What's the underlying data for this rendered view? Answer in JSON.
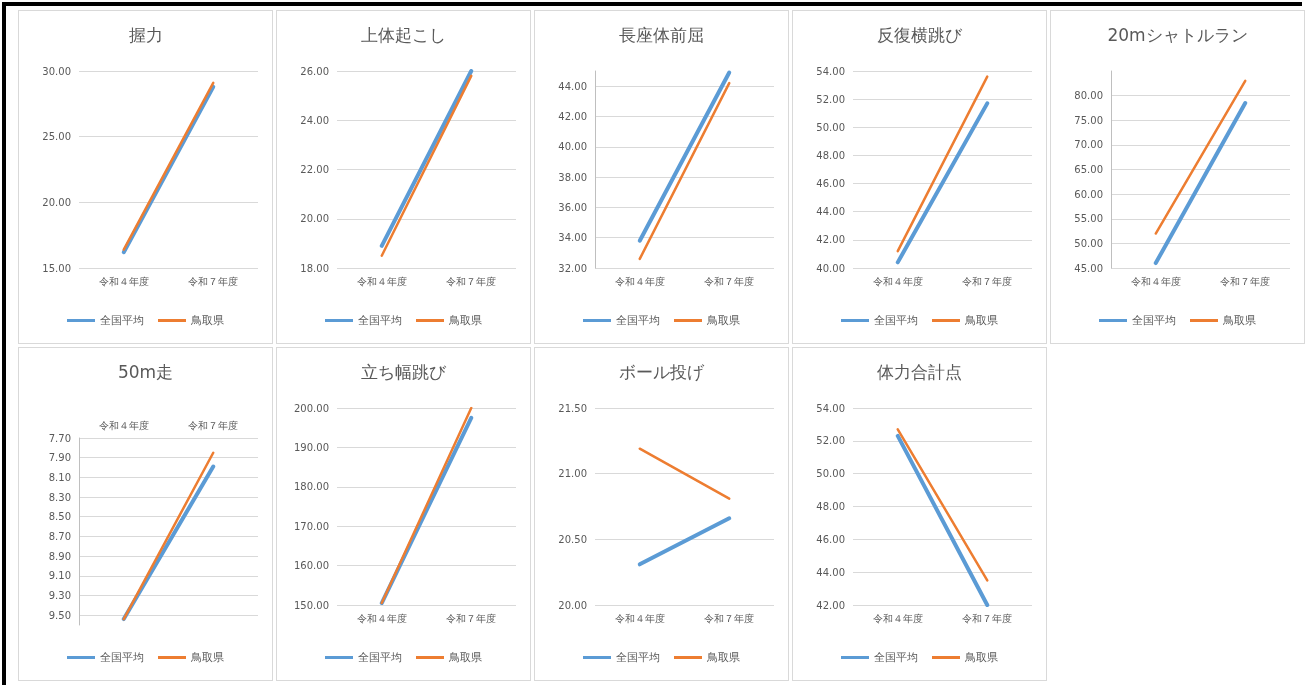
{
  "chart_data": [
    {
      "type": "line",
      "title": "握力",
      "categories": [
        "令和４年度",
        "令和７年度"
      ],
      "series": [
        {
          "name": "全国平均",
          "color": "#5b9bd5",
          "values": [
            16.2,
            28.8
          ]
        },
        {
          "name": "鳥取県",
          "color": "#ed7d31",
          "values": [
            16.4,
            29.1
          ]
        }
      ],
      "ylim": [
        15,
        30
      ],
      "yticks": [
        {
          "value": 15,
          "label": "15.00"
        },
        {
          "value": 20,
          "label": "20.00"
        },
        {
          "value": 25,
          "label": "25.00"
        },
        {
          "value": 30,
          "label": "30.00"
        }
      ],
      "grid": "y",
      "legend": "bottom",
      "marker": "none"
    },
    {
      "type": "line",
      "title": "上体起こし",
      "categories": [
        "令和４年度",
        "令和７年度"
      ],
      "series": [
        {
          "name": "全国平均",
          "color": "#5b9bd5",
          "values": [
            18.9,
            26.0
          ]
        },
        {
          "name": "鳥取県",
          "color": "#ed7d31",
          "values": [
            18.5,
            25.8
          ]
        }
      ],
      "ylim": [
        18,
        26
      ],
      "yticks": [
        {
          "value": 18,
          "label": "18.00"
        },
        {
          "value": 20,
          "label": "20.00"
        },
        {
          "value": 22,
          "label": "22.00"
        },
        {
          "value": 24,
          "label": "24.00"
        },
        {
          "value": 26,
          "label": "26.00"
        }
      ],
      "grid": "y",
      "legend": "bottom",
      "marker": "none"
    },
    {
      "type": "line",
      "title": "長座体前屈",
      "categories": [
        "令和４年度",
        "令和７年度"
      ],
      "series": [
        {
          "name": "全国平均",
          "color": "#5b9bd5",
          "values": [
            33.8,
            44.9
          ]
        },
        {
          "name": "鳥取県",
          "color": "#ed7d31",
          "values": [
            32.6,
            44.2
          ]
        }
      ],
      "ylim": [
        32,
        45
      ],
      "yticks": [
        {
          "value": 32,
          "label": "32.00"
        },
        {
          "value": 34,
          "label": "34.00"
        },
        {
          "value": 36,
          "label": "36.00"
        },
        {
          "value": 38,
          "label": "38.00"
        },
        {
          "value": 40,
          "label": "40.00"
        },
        {
          "value": 42,
          "label": "42.00"
        },
        {
          "value": 44,
          "label": "44.00"
        }
      ],
      "grid": "y",
      "legend": "bottom",
      "marker": "none"
    },
    {
      "type": "line",
      "title": "反復横跳び",
      "categories": [
        "令和４年度",
        "令和７年度"
      ],
      "series": [
        {
          "name": "全国平均",
          "color": "#5b9bd5",
          "values": [
            40.4,
            51.7
          ]
        },
        {
          "name": "鳥取県",
          "color": "#ed7d31",
          "values": [
            41.2,
            53.6
          ]
        }
      ],
      "ylim": [
        40,
        54
      ],
      "yticks": [
        {
          "value": 40,
          "label": "40.00"
        },
        {
          "value": 42,
          "label": "42.00"
        },
        {
          "value": 44,
          "label": "44.00"
        },
        {
          "value": 46,
          "label": "46.00"
        },
        {
          "value": 48,
          "label": "48.00"
        },
        {
          "value": 50,
          "label": "50.00"
        },
        {
          "value": 52,
          "label": "52.00"
        },
        {
          "value": 54,
          "label": "54.00"
        }
      ],
      "grid": "y",
      "legend": "bottom",
      "marker": "none"
    },
    {
      "type": "line",
      "title": "20mシャトルラン",
      "categories": [
        "令和４年度",
        "令和７年度"
      ],
      "series": [
        {
          "name": "全国平均",
          "color": "#5b9bd5",
          "values": [
            46.0,
            78.5
          ]
        },
        {
          "name": "鳥取県",
          "color": "#ed7d31",
          "values": [
            52.0,
            83.0
          ]
        }
      ],
      "ylim": [
        45,
        85
      ],
      "yticks": [
        {
          "value": 45,
          "label": "45.00"
        },
        {
          "value": 50,
          "label": "50.00"
        },
        {
          "value": 55,
          "label": "55.00"
        },
        {
          "value": 60,
          "label": "60.00"
        },
        {
          "value": 65,
          "label": "65.00"
        },
        {
          "value": 70,
          "label": "70.00"
        },
        {
          "value": 75,
          "label": "75.00"
        },
        {
          "value": 80,
          "label": "80.00"
        }
      ],
      "grid": "y",
      "legend": "bottom",
      "marker": "none"
    },
    {
      "type": "line",
      "title": "50m走",
      "categories": [
        "令和４年度",
        "令和７年度"
      ],
      "series": [
        {
          "name": "全国平均",
          "color": "#5b9bd5",
          "values": [
            9.54,
            7.99
          ]
        },
        {
          "name": "鳥取県",
          "color": "#ed7d31",
          "values": [
            9.54,
            7.85
          ]
        }
      ],
      "ylim": [
        9.6,
        7.7
      ],
      "yticks": [
        {
          "value": 7.7,
          "label": "7.70"
        },
        {
          "value": 7.9,
          "label": "7.90"
        },
        {
          "value": 8.1,
          "label": "8.10"
        },
        {
          "value": 8.3,
          "label": "8.30"
        },
        {
          "value": 8.5,
          "label": "8.50"
        },
        {
          "value": 8.7,
          "label": "8.70"
        },
        {
          "value": 8.9,
          "label": "8.90"
        },
        {
          "value": 9.1,
          "label": "9.10"
        },
        {
          "value": 9.3,
          "label": "9.30"
        },
        {
          "value": 9.5,
          "label": "9.50"
        }
      ],
      "grid": "y",
      "legend": "bottom",
      "marker": "none"
    },
    {
      "type": "line",
      "title": "立ち幅跳び",
      "categories": [
        "令和４年度",
        "令和７年度"
      ],
      "series": [
        {
          "name": "全国平均",
          "color": "#5b9bd5",
          "values": [
            150.5,
            197.5
          ]
        },
        {
          "name": "鳥取県",
          "color": "#ed7d31",
          "values": [
            150.5,
            200.0
          ]
        }
      ],
      "ylim": [
        150,
        200
      ],
      "yticks": [
        {
          "value": 150,
          "label": "150.00"
        },
        {
          "value": 160,
          "label": "160.00"
        },
        {
          "value": 170,
          "label": "170.00"
        },
        {
          "value": 180,
          "label": "180.00"
        },
        {
          "value": 190,
          "label": "190.00"
        },
        {
          "value": 200,
          "label": "200.00"
        }
      ],
      "grid": "y",
      "legend": "bottom",
      "marker": "none"
    },
    {
      "type": "line",
      "title": "ボール投げ",
      "categories": [
        "令和４年度",
        "令和７年度"
      ],
      "series": [
        {
          "name": "全国平均",
          "color": "#5b9bd5",
          "values": [
            20.31,
            20.66
          ]
        },
        {
          "name": "鳥取県",
          "color": "#ed7d31",
          "values": [
            21.19,
            20.81
          ]
        }
      ],
      "ylim": [
        20,
        21.5
      ],
      "yticks": [
        {
          "value": 20,
          "label": "20.00"
        },
        {
          "value": 20.5,
          "label": "20.50"
        },
        {
          "value": 21,
          "label": "21.00"
        },
        {
          "value": 21.5,
          "label": "21.50"
        }
      ],
      "grid": "y",
      "legend": "bottom",
      "marker": "none"
    },
    {
      "type": "line",
      "title": "体力合計点",
      "categories": [
        "令和４年度",
        "令和７年度"
      ],
      "series": [
        {
          "name": "全国平均",
          "color": "#5b9bd5",
          "values": [
            52.3,
            42.0
          ]
        },
        {
          "name": "鳥取県",
          "color": "#ed7d31",
          "values": [
            52.7,
            43.5
          ]
        }
      ],
      "ylim": [
        42,
        54
      ],
      "yticks": [
        {
          "value": 42,
          "label": "42.00"
        },
        {
          "value": 44,
          "label": "44.00"
        },
        {
          "value": 46,
          "label": "46.00"
        },
        {
          "value": 48,
          "label": "48.00"
        },
        {
          "value": 50,
          "label": "50.00"
        },
        {
          "value": 52,
          "label": "52.00"
        },
        {
          "value": 54,
          "label": "54.00"
        }
      ],
      "grid": "y",
      "legend": "bottom",
      "marker": "none"
    }
  ]
}
